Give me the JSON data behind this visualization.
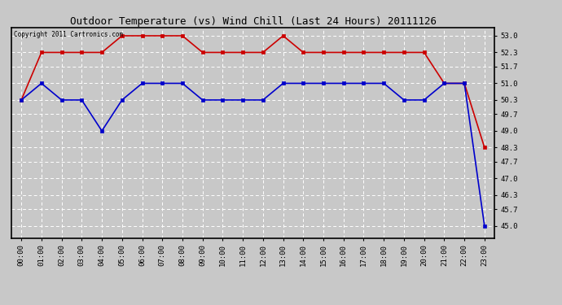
{
  "title": "Outdoor Temperature (vs) Wind Chill (Last 24 Hours) 20111126",
  "copyright_text": "Copyright 2011 Cartronics.com",
  "x_labels": [
    "00:00",
    "01:00",
    "02:00",
    "03:00",
    "04:00",
    "05:00",
    "06:00",
    "07:00",
    "08:00",
    "09:00",
    "10:00",
    "11:00",
    "12:00",
    "13:00",
    "14:00",
    "15:00",
    "16:00",
    "17:00",
    "18:00",
    "19:00",
    "20:00",
    "21:00",
    "22:00",
    "23:00"
  ],
  "temp_red": [
    50.3,
    52.3,
    52.3,
    52.3,
    52.3,
    53.0,
    53.0,
    53.0,
    53.0,
    52.3,
    52.3,
    52.3,
    52.3,
    53.0,
    52.3,
    52.3,
    52.3,
    52.3,
    52.3,
    52.3,
    52.3,
    51.0,
    51.0,
    48.3
  ],
  "wind_chill_blue": [
    50.3,
    51.0,
    50.3,
    50.3,
    49.0,
    50.3,
    51.0,
    51.0,
    51.0,
    50.3,
    50.3,
    50.3,
    50.3,
    51.0,
    51.0,
    51.0,
    51.0,
    51.0,
    51.0,
    50.3,
    50.3,
    51.0,
    51.0,
    45.0
  ],
  "ylim_min": 44.5,
  "ylim_max": 53.35,
  "yticks": [
    45.0,
    45.7,
    46.3,
    47.0,
    47.7,
    48.3,
    49.0,
    49.7,
    50.3,
    51.0,
    51.7,
    52.3,
    53.0
  ],
  "bg_color": "#c8c8c8",
  "plot_bg_color": "#c8c8c8",
  "red_color": "#cc0000",
  "blue_color": "#0000cc",
  "grid_color": "#ffffff",
  "title_color": "#000000",
  "marker": "s",
  "marker_size": 3,
  "line_width": 1.2
}
